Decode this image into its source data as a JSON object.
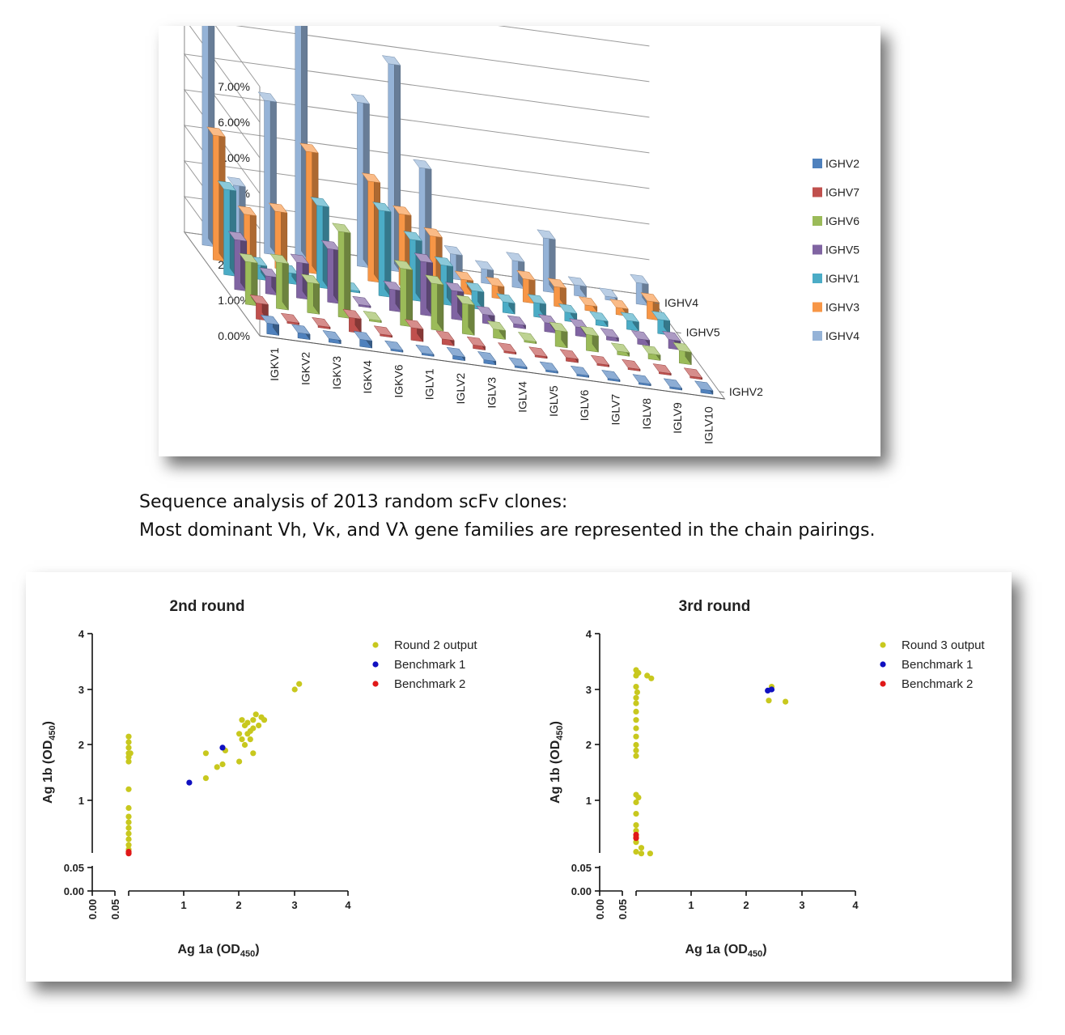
{
  "caption": {
    "line1": "Sequence analysis of 2013 random scFv clones:",
    "line2": "Most dominant Vh, Vκ, and Vλ gene families are represented in the chain pairings."
  },
  "chart_data": [
    {
      "type": "bar",
      "subtype": "3d-column",
      "title": "",
      "categories": [
        "IGKV1",
        "IGKV2",
        "IGKV3",
        "IGKV4",
        "IGKV6",
        "IGLV1",
        "IGLV2",
        "IGLV3",
        "IGLV4",
        "IGLV5",
        "IGLV6",
        "IGLV7",
        "IGLV8",
        "IGLV9",
        "IGLV10"
      ],
      "depth_axis_labels": [
        "IGHV4",
        "IGHV5",
        "IGHV2"
      ],
      "y_ticks": [
        "0.00%",
        "1.00%",
        "2.00%",
        "3.00%",
        "4.00%",
        "5.00%",
        "6.00%",
        "7.00%"
      ],
      "ylim": [
        0,
        7
      ],
      "legend_position": "right",
      "series": [
        {
          "name": "IGHV2",
          "color": "#4f81bd",
          "values": [
            0.3,
            0.15,
            0.1,
            0.2,
            0.05,
            0.05,
            0.1,
            0.1,
            0.05,
            0.05,
            0.05,
            0.05,
            0.05,
            0.05,
            0.1
          ]
        },
        {
          "name": "IGHV7",
          "color": "#c0504d",
          "values": [
            0.45,
            0.05,
            0.05,
            0.4,
            0.05,
            0.35,
            0.15,
            0.1,
            0.05,
            0.05,
            0.1,
            0.05,
            0.05,
            0.05,
            0.05
          ]
        },
        {
          "name": "IGHV6",
          "color": "#9bbb59",
          "values": [
            1.2,
            1.3,
            0.85,
            2.4,
            0.05,
            1.6,
            1.3,
            0.85,
            0.25,
            0.05,
            0.45,
            0.45,
            0.1,
            0.15,
            0.35
          ]
        },
        {
          "name": "IGHV5",
          "color": "#8064a2",
          "values": [
            1.4,
            0.5,
            1.0,
            1.5,
            0.05,
            0.6,
            1.5,
            0.8,
            0.25,
            0.1,
            0.25,
            0.25,
            0.1,
            0.15,
            0.25
          ]
        },
        {
          "name": "IGHV1",
          "color": "#4bacc6",
          "values": [
            2.4,
            0.4,
            0.3,
            2.3,
            0.05,
            2.4,
            1.7,
            1.1,
            0.5,
            0.3,
            0.4,
            0.25,
            0.15,
            0.25,
            0.4
          ]
        },
        {
          "name": "IGHV3",
          "color": "#f79646",
          "values": [
            3.5,
            1.4,
            1.6,
            3.4,
            0.1,
            2.8,
            2.0,
            1.5,
            0.4,
            0.35,
            0.65,
            0.55,
            0.15,
            0.2,
            0.5
          ]
        },
        {
          "name": "IGHV4",
          "color": "#95b3d7",
          "values": [
            6.8,
            1.8,
            4.3,
            6.8,
            0.2,
            4.6,
            5.8,
            3.0,
            0.7,
            0.4,
            0.75,
            1.5,
            0.3,
            0.1,
            0.6
          ]
        }
      ]
    },
    {
      "type": "scatter",
      "title": "2nd round",
      "xlabel_main": "Ag 1a (OD",
      "xlabel_sub": "450",
      "xlabel_end": ")",
      "ylabel_main": "Ag 1b (OD",
      "ylabel_sub": "450",
      "ylabel_end": ")",
      "x_ticks": [
        "0.00",
        "0.05",
        "1",
        "2",
        "3",
        "4"
      ],
      "y_ticks": [
        "0.00",
        "0.05",
        "1",
        "2",
        "3",
        "4"
      ],
      "xlim": [
        0,
        4
      ],
      "ylim": [
        0,
        4
      ],
      "axis_break": true,
      "legend_position": "top-right",
      "series": [
        {
          "name": "Round 2 output",
          "color": "#c8c81e",
          "marker": "circle",
          "points": [
            [
              0.06,
              2.15
            ],
            [
              0.06,
              2.05
            ],
            [
              0.06,
              1.95
            ],
            [
              0.06,
              1.85
            ],
            [
              0.06,
              1.78
            ],
            [
              0.06,
              1.7
            ],
            [
              0.09,
              1.85
            ],
            [
              0.06,
              1.2
            ],
            [
              0.06,
              0.85
            ],
            [
              0.06,
              0.7
            ],
            [
              0.06,
              0.6
            ],
            [
              0.06,
              0.5
            ],
            [
              0.06,
              0.4
            ],
            [
              0.06,
              0.3
            ],
            [
              0.06,
              0.2
            ],
            [
              0.06,
              0.12
            ],
            [
              0.06,
              0.06
            ],
            [
              1.4,
              1.85
            ],
            [
              1.4,
              1.4
            ],
            [
              1.6,
              1.6
            ],
            [
              1.7,
              1.65
            ],
            [
              1.75,
              1.9
            ],
            [
              2.0,
              1.7
            ],
            [
              2.0,
              2.2
            ],
            [
              2.05,
              2.45
            ],
            [
              2.05,
              2.1
            ],
            [
              2.1,
              2.35
            ],
            [
              2.1,
              2.0
            ],
            [
              2.15,
              2.2
            ],
            [
              2.15,
              2.4
            ],
            [
              2.2,
              2.25
            ],
            [
              2.2,
              2.1
            ],
            [
              2.25,
              2.45
            ],
            [
              2.25,
              2.3
            ],
            [
              2.25,
              1.85
            ],
            [
              2.3,
              2.55
            ],
            [
              2.35,
              2.35
            ],
            [
              2.4,
              2.5
            ],
            [
              2.45,
              2.45
            ],
            [
              3.0,
              3.0
            ],
            [
              3.08,
              3.1
            ]
          ]
        },
        {
          "name": "Benchmark 1",
          "color": "#1010c0",
          "marker": "circle",
          "points": [
            [
              1.1,
              1.32
            ],
            [
              1.7,
              1.95
            ]
          ]
        },
        {
          "name": "Benchmark 2",
          "color": "#e01818",
          "marker": "circle",
          "points": [
            [
              0.06,
              0.08
            ],
            [
              0.06,
              0.05
            ]
          ]
        }
      ]
    },
    {
      "type": "scatter",
      "title": "3rd round",
      "xlabel_main": "Ag 1a (OD",
      "xlabel_sub": "450",
      "xlabel_end": ")",
      "ylabel_main": "Ag 1b (OD",
      "ylabel_sub": "450",
      "ylabel_end": ")",
      "x_ticks": [
        "0.00",
        "0.05",
        "1",
        "2",
        "3",
        "4"
      ],
      "y_ticks": [
        "0.00",
        "0.05",
        "1",
        "2",
        "3",
        "4"
      ],
      "xlim": [
        0,
        4
      ],
      "ylim": [
        0,
        4
      ],
      "axis_break": true,
      "legend_position": "top-right",
      "series": [
        {
          "name": "Round 3 output",
          "color": "#c8c81e",
          "marker": "circle",
          "points": [
            [
              0.06,
              3.35
            ],
            [
              0.08,
              3.3
            ],
            [
              0.06,
              3.25
            ],
            [
              0.1,
              3.3
            ],
            [
              0.25,
              3.25
            ],
            [
              0.32,
              3.2
            ],
            [
              0.06,
              3.05
            ],
            [
              0.08,
              2.95
            ],
            [
              0.06,
              2.85
            ],
            [
              0.06,
              2.75
            ],
            [
              0.06,
              2.6
            ],
            [
              0.06,
              2.45
            ],
            [
              0.06,
              2.3
            ],
            [
              0.06,
              2.15
            ],
            [
              0.06,
              2.0
            ],
            [
              0.06,
              1.9
            ],
            [
              0.06,
              1.8
            ],
            [
              0.06,
              1.1
            ],
            [
              0.1,
              1.05
            ],
            [
              0.06,
              0.95
            ],
            [
              0.06,
              0.75
            ],
            [
              0.06,
              0.55
            ],
            [
              0.06,
              0.45
            ],
            [
              0.06,
              0.35
            ],
            [
              0.06,
              0.25
            ],
            [
              0.15,
              0.15
            ],
            [
              0.06,
              0.08
            ],
            [
              0.15,
              0.05
            ],
            [
              0.3,
              0.05
            ],
            [
              2.4,
              2.8
            ],
            [
              2.45,
              3.05
            ],
            [
              2.7,
              2.78
            ]
          ]
        },
        {
          "name": "Benchmark 1",
          "color": "#1010c0",
          "marker": "circle",
          "points": [
            [
              2.38,
              2.98
            ],
            [
              2.45,
              3.0
            ]
          ]
        },
        {
          "name": "Benchmark 2",
          "color": "#e01818",
          "marker": "circle",
          "points": [
            [
              0.06,
              0.38
            ],
            [
              0.06,
              0.32
            ]
          ]
        }
      ]
    }
  ]
}
